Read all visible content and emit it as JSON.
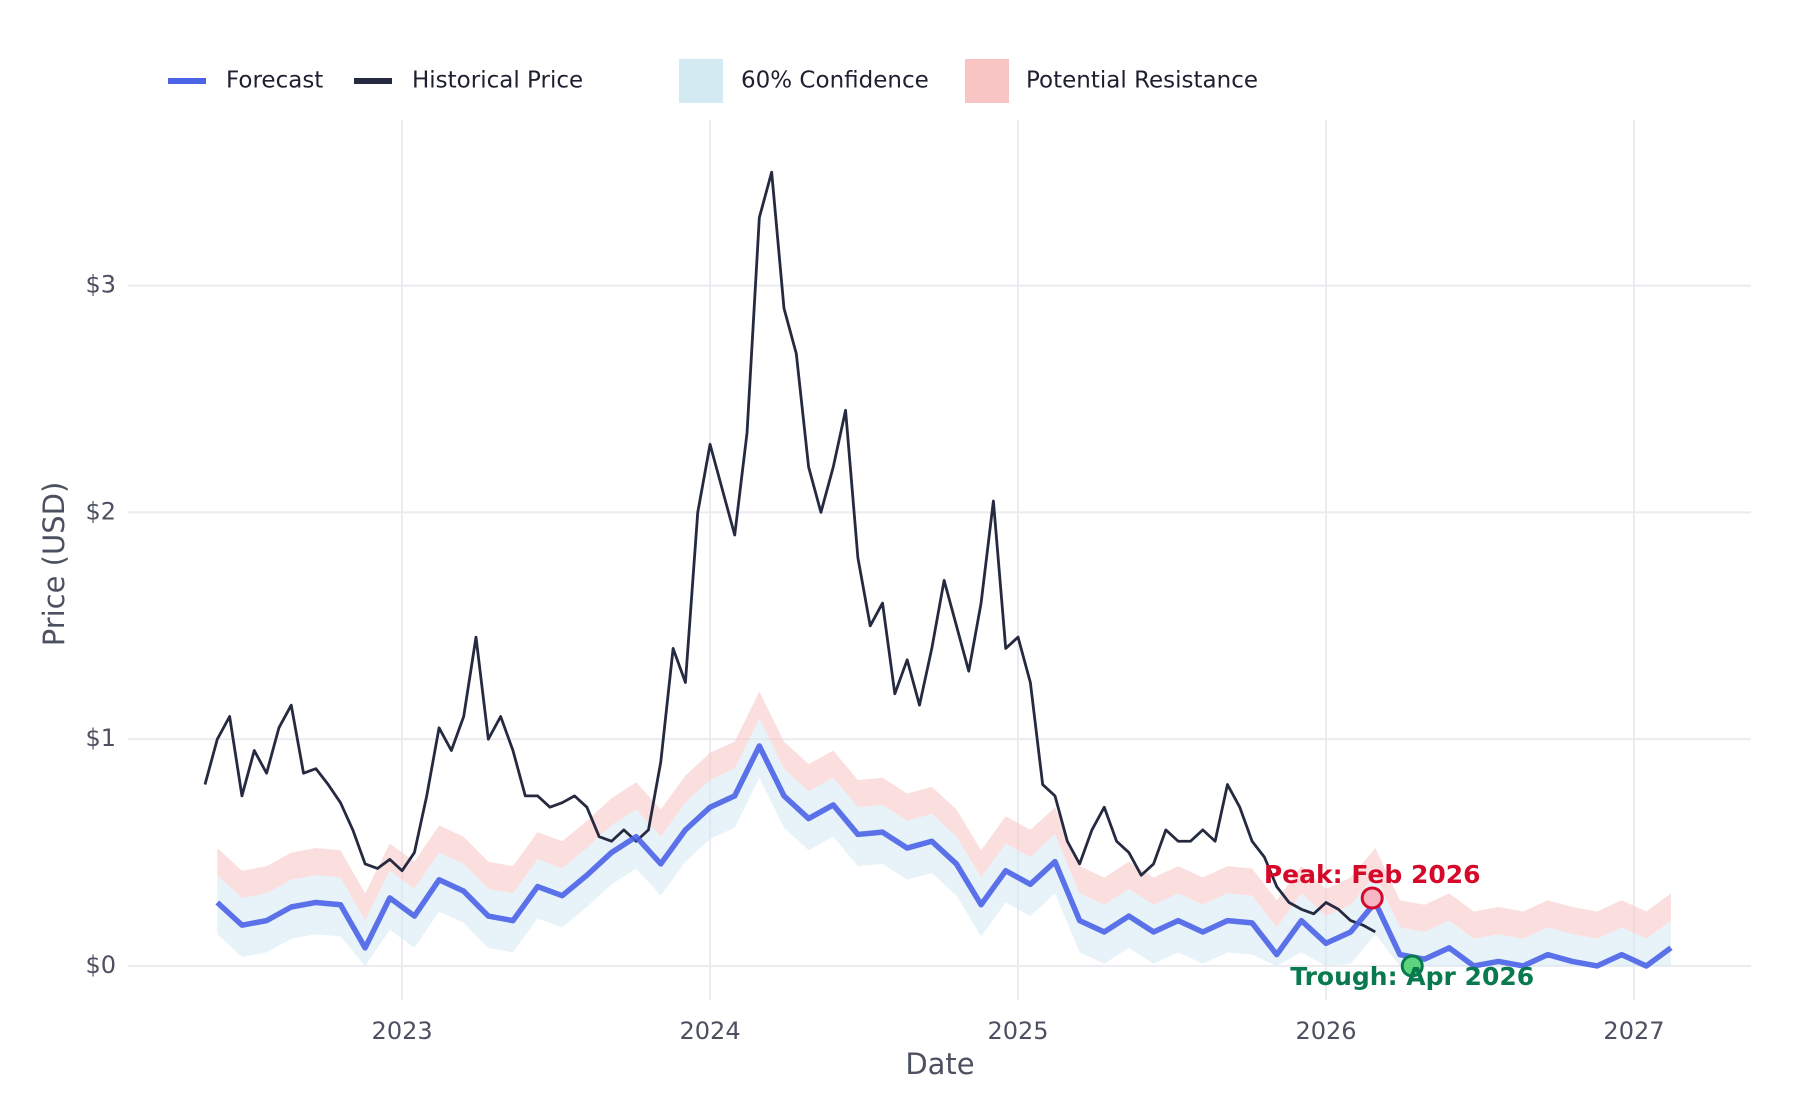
{
  "chart_data": {
    "type": "line",
    "x_label": "Date",
    "y_label": "Price (USD)",
    "xlim": [
      2022.11,
      2027.38
    ],
    "xticks": [
      2023,
      2024,
      2025,
      2026,
      2027
    ],
    "ylim": [
      -0.15,
      3.73
    ],
    "yticks": [
      {
        "value": 0,
        "label": "$0"
      },
      {
        "value": 1,
        "label": "$1"
      },
      {
        "value": 2,
        "label": "$2"
      },
      {
        "value": 3,
        "label": "$3"
      }
    ],
    "grid": true,
    "legend": "top",
    "series": [
      {
        "name": "Forecast",
        "type": "line",
        "color": "#4a63e7",
        "x": [
          2022.4,
          2022.48,
          2022.56,
          2022.64,
          2022.72,
          2022.8,
          2022.88,
          2022.96,
          2023.04,
          2023.12,
          2023.2,
          2023.28,
          2023.36,
          2023.44,
          2023.52,
          2023.6,
          2023.68,
          2023.76,
          2023.84,
          2023.92,
          2024.0,
          2024.08,
          2024.16,
          2024.24,
          2024.32,
          2024.4,
          2024.48,
          2024.56,
          2024.64,
          2024.72,
          2024.8,
          2024.88,
          2024.96,
          2025.04,
          2025.12,
          2025.2,
          2025.28,
          2025.36,
          2025.44,
          2025.52,
          2025.6,
          2025.68,
          2025.76,
          2025.84,
          2025.92,
          2026.0,
          2026.08,
          2026.16,
          2026.24,
          2026.32,
          2026.4,
          2026.48,
          2026.56,
          2026.64,
          2026.72,
          2026.8,
          2026.88,
          2026.96,
          2027.04,
          2027.12
        ],
        "values": [
          0.28,
          0.18,
          0.2,
          0.26,
          0.28,
          0.27,
          0.08,
          0.3,
          0.22,
          0.38,
          0.33,
          0.22,
          0.2,
          0.35,
          0.31,
          0.4,
          0.5,
          0.57,
          0.45,
          0.6,
          0.7,
          0.75,
          0.97,
          0.75,
          0.65,
          0.71,
          0.58,
          0.59,
          0.52,
          0.55,
          0.45,
          0.27,
          0.42,
          0.36,
          0.46,
          0.2,
          0.15,
          0.22,
          0.15,
          0.2,
          0.15,
          0.2,
          0.19,
          0.05,
          0.2,
          0.1,
          0.15,
          0.28,
          0.05,
          0.03,
          0.08,
          0.0,
          0.02,
          0.0,
          0.05,
          0.02,
          0.0,
          0.05,
          0.0,
          0.08
        ]
      },
      {
        "name": "Historical Price",
        "type": "line",
        "color": "#262a40",
        "x": [
          2022.36,
          2022.4,
          2022.44,
          2022.48,
          2022.52,
          2022.56,
          2022.6,
          2022.64,
          2022.68,
          2022.72,
          2022.76,
          2022.8,
          2022.84,
          2022.88,
          2022.92,
          2022.96,
          2023.0,
          2023.04,
          2023.08,
          2023.12,
          2023.16,
          2023.2,
          2023.24,
          2023.28,
          2023.32,
          2023.36,
          2023.4,
          2023.44,
          2023.48,
          2023.52,
          2023.56,
          2023.6,
          2023.64,
          2023.68,
          2023.72,
          2023.76,
          2023.8,
          2023.84,
          2023.88,
          2023.92,
          2023.96,
          2024.0,
          2024.04,
          2024.08,
          2024.12,
          2024.16,
          2024.2,
          2024.24,
          2024.28,
          2024.32,
          2024.36,
          2024.4,
          2024.44,
          2024.48,
          2024.52,
          2024.56,
          2024.6,
          2024.64,
          2024.68,
          2024.72,
          2024.76,
          2024.8,
          2024.84,
          2024.88,
          2024.92,
          2024.96,
          2025.0,
          2025.04,
          2025.08,
          2025.12,
          2025.16,
          2025.2,
          2025.24,
          2025.28,
          2025.32,
          2025.36,
          2025.4,
          2025.44,
          2025.48,
          2025.52,
          2025.56,
          2025.6,
          2025.64,
          2025.68,
          2025.72,
          2025.76,
          2025.8,
          2025.84,
          2025.88,
          2025.92,
          2025.96,
          2026.0,
          2026.04,
          2026.08,
          2026.12,
          2026.16
        ],
        "values": [
          0.8,
          1.0,
          1.1,
          0.75,
          0.95,
          0.85,
          1.05,
          1.15,
          0.85,
          0.87,
          0.8,
          0.72,
          0.6,
          0.45,
          0.43,
          0.47,
          0.42,
          0.5,
          0.75,
          1.05,
          0.95,
          1.1,
          1.45,
          1.0,
          1.1,
          0.95,
          0.75,
          0.75,
          0.7,
          0.72,
          0.75,
          0.7,
          0.57,
          0.55,
          0.6,
          0.55,
          0.6,
          0.9,
          1.4,
          1.25,
          2.0,
          2.3,
          2.1,
          1.9,
          2.35,
          3.3,
          3.5,
          2.9,
          2.7,
          2.2,
          2.0,
          2.2,
          2.45,
          1.8,
          1.5,
          1.6,
          1.2,
          1.35,
          1.15,
          1.4,
          1.7,
          1.5,
          1.3,
          1.6,
          2.05,
          1.4,
          1.45,
          1.25,
          0.8,
          0.75,
          0.55,
          0.45,
          0.6,
          0.7,
          0.55,
          0.5,
          0.4,
          0.45,
          0.6,
          0.55,
          0.55,
          0.6,
          0.55,
          0.8,
          0.7,
          0.55,
          0.48,
          0.35,
          0.28,
          0.25,
          0.23,
          0.28,
          0.25,
          0.2,
          0.18,
          0.15
        ]
      },
      {
        "name": "60% Confidence",
        "type": "band",
        "color": "#d4eaf3",
        "x": [
          2022.4,
          2022.48,
          2022.56,
          2022.64,
          2022.72,
          2022.8,
          2022.88,
          2022.96,
          2023.04,
          2023.12,
          2023.2,
          2023.28,
          2023.36,
          2023.44,
          2023.52,
          2023.6,
          2023.68,
          2023.76,
          2023.84,
          2023.92,
          2024.0,
          2024.08,
          2024.16,
          2024.24,
          2024.32,
          2024.4,
          2024.48,
          2024.56,
          2024.64,
          2024.72,
          2024.8,
          2024.88,
          2024.96,
          2025.04,
          2025.12,
          2025.2,
          2025.28,
          2025.36,
          2025.44,
          2025.52,
          2025.6,
          2025.68,
          2025.76,
          2025.84,
          2025.92,
          2026.0,
          2026.08,
          2026.16,
          2026.24,
          2026.32,
          2026.4,
          2026.48,
          2026.56,
          2026.64,
          2026.72,
          2026.8,
          2026.88,
          2026.96,
          2027.04,
          2027.12
        ],
        "lower": [
          0.14,
          0.04,
          0.06,
          0.12,
          0.14,
          0.13,
          0,
          0.16,
          0.08,
          0.24,
          0.19,
          0.08,
          0.06,
          0.21,
          0.17,
          0.26,
          0.36,
          0.43,
          0.31,
          0.46,
          0.56,
          0.61,
          0.83,
          0.61,
          0.51,
          0.57,
          0.44,
          0.45,
          0.38,
          0.41,
          0.31,
          0.13,
          0.28,
          0.22,
          0.32,
          0.06,
          0.01,
          0.08,
          0.01,
          0.06,
          0.01,
          0.06,
          0.05,
          0,
          0.06,
          0,
          0.01,
          0.14,
          0,
          0,
          0,
          0,
          0,
          0,
          0,
          0,
          0,
          0,
          0,
          0
        ],
        "upper": [
          0.4,
          0.3,
          0.32,
          0.38,
          0.4,
          0.39,
          0.2,
          0.42,
          0.34,
          0.5,
          0.45,
          0.34,
          0.32,
          0.47,
          0.43,
          0.52,
          0.62,
          0.69,
          0.57,
          0.72,
          0.82,
          0.87,
          1.09,
          0.87,
          0.77,
          0.83,
          0.7,
          0.71,
          0.64,
          0.67,
          0.57,
          0.39,
          0.54,
          0.48,
          0.58,
          0.32,
          0.27,
          0.34,
          0.27,
          0.32,
          0.27,
          0.32,
          0.31,
          0.17,
          0.32,
          0.22,
          0.27,
          0.4,
          0.17,
          0.15,
          0.2,
          0.12,
          0.14,
          0.12,
          0.17,
          0.14,
          0.12,
          0.17,
          0.12,
          0.2
        ]
      },
      {
        "name": "Potential Resistance",
        "type": "band",
        "color": "#f8c4c4",
        "x": [
          2022.4,
          2022.48,
          2022.56,
          2022.64,
          2022.72,
          2022.8,
          2022.88,
          2022.96,
          2023.04,
          2023.12,
          2023.2,
          2023.28,
          2023.36,
          2023.44,
          2023.52,
          2023.6,
          2023.68,
          2023.76,
          2023.84,
          2023.92,
          2024.0,
          2024.08,
          2024.16,
          2024.24,
          2024.32,
          2024.4,
          2024.48,
          2024.56,
          2024.64,
          2024.72,
          2024.8,
          2024.88,
          2024.96,
          2025.04,
          2025.12,
          2025.2,
          2025.28,
          2025.36,
          2025.44,
          2025.52,
          2025.6,
          2025.68,
          2025.76,
          2025.84,
          2025.92,
          2026.0,
          2026.08,
          2026.16,
          2026.24,
          2026.32,
          2026.4,
          2026.48,
          2026.56,
          2026.64,
          2026.72,
          2026.8,
          2026.88,
          2026.96,
          2027.04,
          2027.12
        ],
        "lower": [
          0.4,
          0.3,
          0.32,
          0.38,
          0.4,
          0.39,
          0.2,
          0.42,
          0.34,
          0.5,
          0.45,
          0.34,
          0.32,
          0.47,
          0.43,
          0.52,
          0.62,
          0.69,
          0.57,
          0.72,
          0.82,
          0.87,
          1.09,
          0.87,
          0.77,
          0.83,
          0.7,
          0.71,
          0.64,
          0.67,
          0.57,
          0.39,
          0.54,
          0.48,
          0.58,
          0.32,
          0.27,
          0.34,
          0.27,
          0.32,
          0.27,
          0.32,
          0.31,
          0.17,
          0.32,
          0.22,
          0.27,
          0.4,
          0.17,
          0.15,
          0.2,
          0.12,
          0.14,
          0.12,
          0.17,
          0.14,
          0.12,
          0.17,
          0.12,
          0.2
        ],
        "upper": [
          0.52,
          0.42,
          0.44,
          0.5,
          0.52,
          0.51,
          0.32,
          0.54,
          0.46,
          0.62,
          0.57,
          0.46,
          0.44,
          0.59,
          0.55,
          0.64,
          0.74,
          0.81,
          0.69,
          0.84,
          0.94,
          0.99,
          1.21,
          0.99,
          0.89,
          0.95,
          0.82,
          0.83,
          0.76,
          0.79,
          0.69,
          0.51,
          0.66,
          0.6,
          0.7,
          0.44,
          0.39,
          0.46,
          0.39,
          0.44,
          0.39,
          0.44,
          0.43,
          0.29,
          0.44,
          0.34,
          0.39,
          0.52,
          0.29,
          0.27,
          0.32,
          0.24,
          0.26,
          0.24,
          0.29,
          0.26,
          0.24,
          0.29,
          0.24,
          0.32
        ]
      }
    ],
    "annotations": [
      {
        "text": "Peak: Feb 2026",
        "x": 2026.15,
        "y": 0.3,
        "color": "#d50a2a",
        "marker_fill": "#f6b6c3"
      },
      {
        "text": "Trough: Apr 2026",
        "x": 2026.28,
        "y": 0,
        "color": "#087a4e",
        "marker_fill": "#5fd47f"
      }
    ]
  }
}
